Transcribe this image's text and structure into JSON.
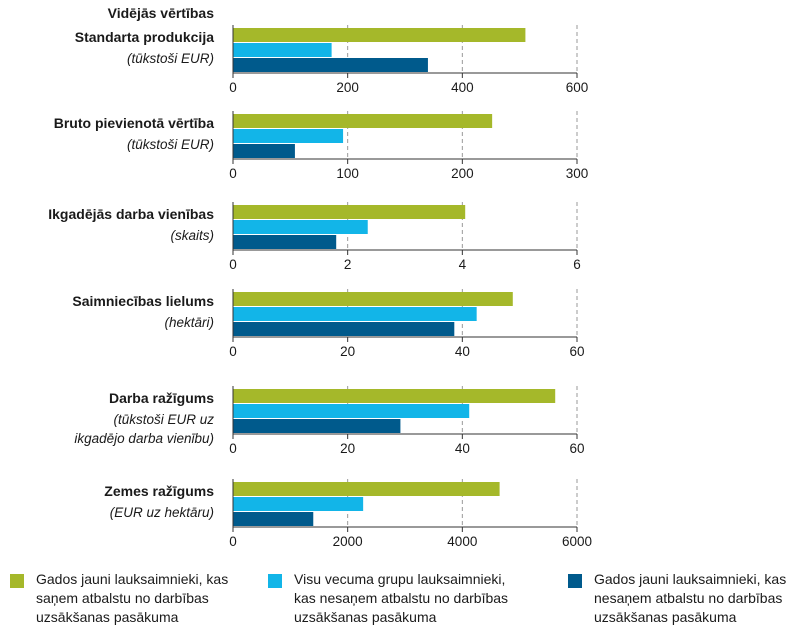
{
  "header": {
    "title": "Vidējās vērtības"
  },
  "legend_items": [
    {
      "label": "Gados jauni lauksaimnieki, kas saņem atbalstu no darbības uzsākšanas pasākuma",
      "color": "#a5b82a"
    },
    {
      "label": "Visu vecuma grupu lauksaimnieki, kas nesaņem atbalstu no darbības uzsākšanas pasākuma",
      "color": "#12b5e8"
    },
    {
      "label": "Gados jauni lauksaimnieki, kas nesaņem atbalstu no darbības uzsākšanas pasākuma",
      "color": "#005a8c"
    }
  ],
  "chart_data": [
    {
      "type": "bar",
      "orientation": "horizontal",
      "label": "Standarta produkcija",
      "unit": "(tūkstoši EUR)",
      "xlim": [
        0,
        600
      ],
      "ticks": [
        0,
        200,
        400,
        600
      ],
      "values": [
        510,
        172,
        340
      ]
    },
    {
      "type": "bar",
      "orientation": "horizontal",
      "label": "Bruto pievienotā vērtība",
      "unit": "(tūkstoši EUR)",
      "xlim": [
        0,
        300
      ],
      "ticks": [
        0,
        100,
        200,
        300
      ],
      "values": [
        226,
        96,
        54
      ]
    },
    {
      "type": "bar",
      "orientation": "horizontal",
      "label": "Ikgadējās darba vienības",
      "unit": "(skaits)",
      "xlim": [
        0,
        6
      ],
      "ticks": [
        0,
        2,
        4,
        6
      ],
      "values": [
        4.05,
        2.35,
        1.8
      ]
    },
    {
      "type": "bar",
      "orientation": "horizontal",
      "label": "Saimniecības lielums",
      "unit": "(hektāri)",
      "xlim": [
        0,
        60
      ],
      "ticks": [
        0,
        20,
        40,
        60
      ],
      "values": [
        48.8,
        42.5,
        38.6
      ]
    },
    {
      "type": "bar",
      "orientation": "horizontal",
      "label": "Darba ražīgums",
      "unit": "(tūkstoši EUR uz ikgadējo darba vienību)",
      "unit_lines": [
        "(tūkstoši EUR uz",
        "ikgadējo darba vienību)"
      ],
      "xlim": [
        0,
        60
      ],
      "ticks": [
        0,
        20,
        40,
        60
      ],
      "values": [
        56.2,
        41.2,
        29.2
      ]
    },
    {
      "type": "bar",
      "orientation": "horizontal",
      "label": "Zemes ražīgums",
      "unit": "(EUR uz hektāru)",
      "xlim": [
        0,
        6000
      ],
      "ticks": [
        0,
        2000,
        4000,
        6000
      ],
      "values": [
        4650,
        2270,
        1400
      ]
    }
  ]
}
